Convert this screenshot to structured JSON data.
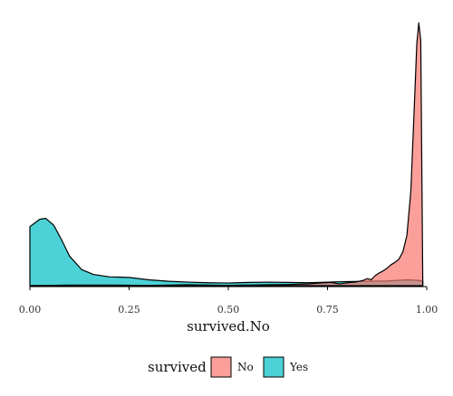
{
  "chart_data": {
    "type": "area",
    "subtype": "density",
    "title": "",
    "xlabel": "survived.No",
    "ylabel": "",
    "xlim": [
      0,
      1
    ],
    "xticks": [
      "0.00",
      "0.25",
      "0.50",
      "0.75",
      "1.00"
    ],
    "y_axis_visible": false,
    "grid": false,
    "fill_alpha": 0.7,
    "outline_color": "#000000",
    "legend": {
      "title": "survived",
      "position": "bottom",
      "entries": [
        "No",
        "Yes"
      ]
    },
    "series": [
      {
        "name": "No",
        "color": "#F8766D",
        "x": [
          0.0,
          0.1,
          0.2,
          0.3,
          0.4,
          0.5,
          0.6,
          0.65,
          0.7,
          0.73,
          0.76,
          0.78,
          0.8,
          0.82,
          0.84,
          0.85,
          0.86,
          0.87,
          0.88,
          0.89,
          0.9,
          0.91,
          0.92,
          0.93,
          0.94,
          0.95,
          0.96,
          0.97,
          0.975,
          0.98,
          0.985,
          0.99
        ],
        "y": [
          0.0,
          0.02,
          0.02,
          0.01,
          0.03,
          0.01,
          0.03,
          0.04,
          0.06,
          0.09,
          0.11,
          0.06,
          0.1,
          0.12,
          0.18,
          0.24,
          0.2,
          0.34,
          0.43,
          0.5,
          0.59,
          0.71,
          0.79,
          0.9,
          1.15,
          1.7,
          3.2,
          6.5,
          8.2,
          8.9,
          8.3,
          0.2
        ]
      },
      {
        "name": "Yes",
        "color": "#00BFC4",
        "x": [
          0.0,
          0.01,
          0.025,
          0.04,
          0.06,
          0.08,
          0.1,
          0.13,
          0.16,
          0.2,
          0.25,
          0.3,
          0.35,
          0.4,
          0.45,
          0.5,
          0.55,
          0.6,
          0.65,
          0.7,
          0.75,
          0.8,
          0.85,
          0.9,
          0.95,
          0.98,
          0.99
        ],
        "y": [
          2.0,
          2.1,
          2.25,
          2.28,
          2.05,
          1.55,
          1.0,
          0.55,
          0.38,
          0.3,
          0.28,
          0.2,
          0.15,
          0.12,
          0.1,
          0.09,
          0.11,
          0.12,
          0.11,
          0.1,
          0.12,
          0.14,
          0.15,
          0.16,
          0.2,
          0.18,
          0.15
        ]
      }
    ]
  }
}
